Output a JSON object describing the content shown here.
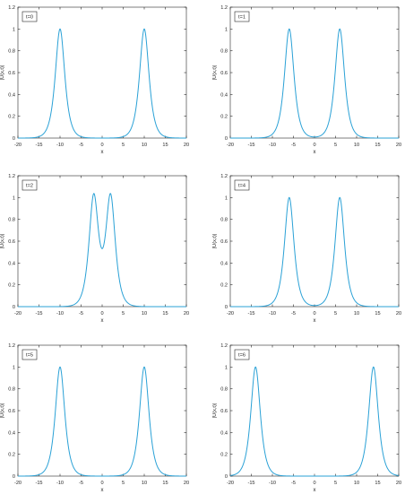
{
  "chart_data": [
    {
      "type": "line",
      "legend_label": "t=0",
      "xlabel": "x",
      "ylabel": "|U(x,t)|",
      "xlim": [
        -20,
        20
      ],
      "ylim": [
        0,
        1.2
      ],
      "xticks": [
        -20,
        -15,
        -10,
        -5,
        0,
        5,
        10,
        15,
        20
      ],
      "yticks": [
        0,
        0.2,
        0.4,
        0.6,
        0.8,
        1,
        1.2
      ],
      "ytick_labels": [
        "0",
        "0.2",
        "0.4",
        "0.6",
        "0.8",
        "1",
        "1.2"
      ],
      "series": [
        {
          "peaks": [
            {
              "center": -10,
              "height": 1.0
            },
            {
              "center": 10,
              "height": 1.0
            }
          ],
          "width": 1.0
        }
      ]
    },
    {
      "type": "line",
      "legend_label": "t=1",
      "xlabel": "x",
      "ylabel": "|U(x,t)|",
      "xlim": [
        -20,
        20
      ],
      "ylim": [
        0,
        1.2
      ],
      "xticks": [
        -20,
        -15,
        -10,
        -5,
        0,
        5,
        10,
        15,
        20
      ],
      "yticks": [
        0,
        0.2,
        0.4,
        0.6,
        0.8,
        1,
        1.2
      ],
      "ytick_labels": [
        "0",
        "0.2",
        "0.4",
        "0.6",
        "0.8",
        "1",
        "1.2"
      ],
      "series": [
        {
          "peaks": [
            {
              "center": -6,
              "height": 1.0
            },
            {
              "center": 6,
              "height": 1.0
            }
          ],
          "width": 1.0
        }
      ]
    },
    {
      "type": "line",
      "legend_label": "t=2",
      "xlabel": "x",
      "ylabel": "|U(x,t)|",
      "xlim": [
        -20,
        20
      ],
      "ylim": [
        0,
        1.2
      ],
      "xticks": [
        -20,
        -15,
        -10,
        -5,
        0,
        5,
        10,
        15,
        20
      ],
      "yticks": [
        0,
        0.2,
        0.4,
        0.6,
        0.8,
        1,
        1.2
      ],
      "ytick_labels": [
        "0",
        "0.2",
        "0.4",
        "0.6",
        "0.8",
        "1",
        "1.2"
      ],
      "series": [
        {
          "peaks": [
            {
              "center": -2,
              "height": 1.0
            },
            {
              "center": 2,
              "height": 1.0
            }
          ],
          "width": 1.0
        }
      ]
    },
    {
      "type": "line",
      "legend_label": "t=4",
      "xlabel": "x",
      "ylabel": "|U(x,t)|",
      "xlim": [
        -20,
        20
      ],
      "ylim": [
        0,
        1.2
      ],
      "xticks": [
        -20,
        -15,
        -10,
        -5,
        0,
        5,
        10,
        15,
        20
      ],
      "yticks": [
        0,
        0.2,
        0.4,
        0.6,
        0.8,
        1,
        1.2
      ],
      "ytick_labels": [
        "0",
        "0.2",
        "0.4",
        "0.6",
        "0.8",
        "1",
        "1.2"
      ],
      "series": [
        {
          "peaks": [
            {
              "center": -6,
              "height": 1.0
            },
            {
              "center": 6,
              "height": 1.0
            }
          ],
          "width": 1.0
        }
      ]
    },
    {
      "type": "line",
      "legend_label": "t=5",
      "xlabel": "x",
      "ylabel": "|U(x,t)|",
      "xlim": [
        -20,
        20
      ],
      "ylim": [
        0,
        1.2
      ],
      "xticks": [
        -20,
        -15,
        -10,
        -5,
        0,
        5,
        10,
        15,
        20
      ],
      "yticks": [
        0,
        0.2,
        0.4,
        0.6,
        0.8,
        1,
        1.2
      ],
      "ytick_labels": [
        "0",
        "0.2",
        "0.4",
        "0.6",
        "0.8",
        "1",
        "1.2"
      ],
      "series": [
        {
          "peaks": [
            {
              "center": -10,
              "height": 1.0
            },
            {
              "center": 10,
              "height": 1.0
            }
          ],
          "width": 1.0
        }
      ]
    },
    {
      "type": "line",
      "legend_label": "t=6",
      "xlabel": "x",
      "ylabel": "|U(x,t)|",
      "xlim": [
        -20,
        20
      ],
      "ylim": [
        0,
        1.2
      ],
      "xticks": [
        -20,
        -15,
        -10,
        -5,
        0,
        5,
        10,
        15,
        20
      ],
      "yticks": [
        0,
        0.2,
        0.4,
        0.6,
        0.8,
        1,
        1.2
      ],
      "ytick_labels": [
        "0",
        "0.2",
        "0.4",
        "0.6",
        "0.8",
        "1",
        "1.2"
      ],
      "series": [
        {
          "peaks": [
            {
              "center": -14,
              "height": 1.0
            },
            {
              "center": 14,
              "height": 1.0
            }
          ],
          "width": 1.0
        }
      ]
    }
  ],
  "colors": {
    "line": "#2aa1d6",
    "axis": "#262626"
  }
}
